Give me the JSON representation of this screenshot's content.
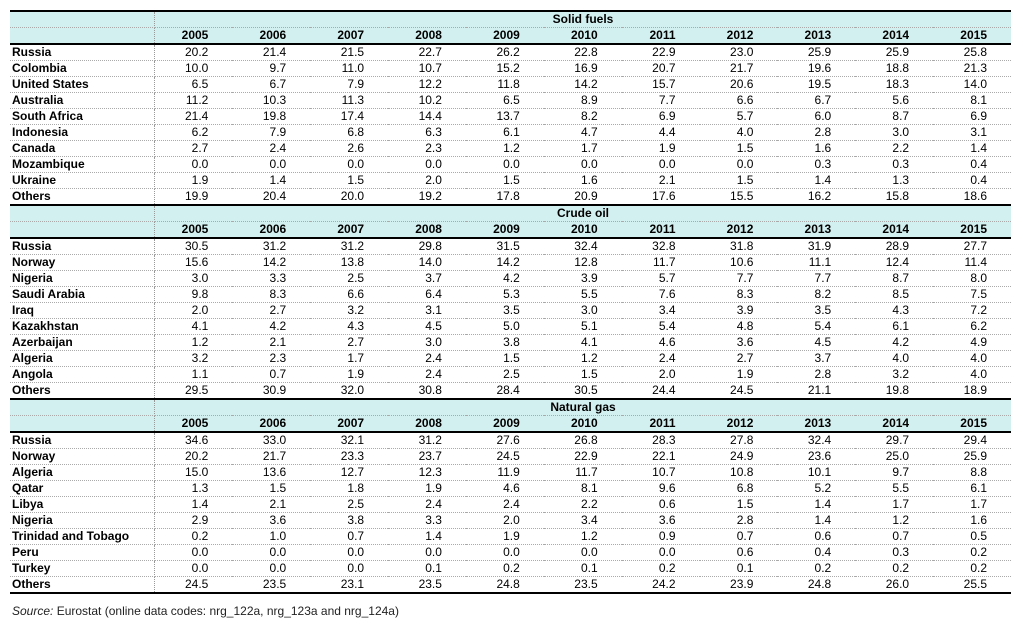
{
  "years": [
    "2005",
    "2006",
    "2007",
    "2008",
    "2009",
    "2010",
    "2011",
    "2012",
    "2013",
    "2014",
    "2015"
  ],
  "sections": [
    {
      "title": "Solid fuels",
      "rows": [
        {
          "label": "Russia",
          "values": [
            "20.2",
            "21.4",
            "21.5",
            "22.7",
            "26.2",
            "22.8",
            "22.9",
            "23.0",
            "25.9",
            "25.9",
            "25.8"
          ]
        },
        {
          "label": "Colombia",
          "values": [
            "10.0",
            "9.7",
            "11.0",
            "10.7",
            "15.2",
            "16.9",
            "20.7",
            "21.7",
            "19.6",
            "18.8",
            "21.3"
          ]
        },
        {
          "label": "United States",
          "values": [
            "6.5",
            "6.7",
            "7.9",
            "12.2",
            "11.8",
            "14.2",
            "15.7",
            "20.6",
            "19.5",
            "18.3",
            "14.0"
          ]
        },
        {
          "label": "Australia",
          "values": [
            "11.2",
            "10.3",
            "11.3",
            "10.2",
            "6.5",
            "8.9",
            "7.7",
            "6.6",
            "6.7",
            "5.6",
            "8.1"
          ]
        },
        {
          "label": "South Africa",
          "values": [
            "21.4",
            "19.8",
            "17.4",
            "14.4",
            "13.7",
            "8.2",
            "6.9",
            "5.7",
            "6.0",
            "8.7",
            "6.9"
          ]
        },
        {
          "label": "Indonesia",
          "values": [
            "6.2",
            "7.9",
            "6.8",
            "6.3",
            "6.1",
            "4.7",
            "4.4",
            "4.0",
            "2.8",
            "3.0",
            "3.1"
          ]
        },
        {
          "label": "Canada",
          "values": [
            "2.7",
            "2.4",
            "2.6",
            "2.3",
            "1.2",
            "1.7",
            "1.9",
            "1.5",
            "1.6",
            "2.2",
            "1.4"
          ]
        },
        {
          "label": "Mozambique",
          "values": [
            "0.0",
            "0.0",
            "0.0",
            "0.0",
            "0.0",
            "0.0",
            "0.0",
            "0.0",
            "0.3",
            "0.3",
            "0.4"
          ]
        },
        {
          "label": "Ukraine",
          "values": [
            "1.9",
            "1.4",
            "1.5",
            "2.0",
            "1.5",
            "1.6",
            "2.1",
            "1.5",
            "1.4",
            "1.3",
            "0.4"
          ]
        },
        {
          "label": "Others",
          "values": [
            "19.9",
            "20.4",
            "20.0",
            "19.2",
            "17.8",
            "20.9",
            "17.6",
            "15.5",
            "16.2",
            "15.8",
            "18.6"
          ]
        }
      ]
    },
    {
      "title": "Crude oil",
      "rows": [
        {
          "label": "Russia",
          "values": [
            "30.5",
            "31.2",
            "31.2",
            "29.8",
            "31.5",
            "32.4",
            "32.8",
            "31.8",
            "31.9",
            "28.9",
            "27.7"
          ]
        },
        {
          "label": "Norway",
          "values": [
            "15.6",
            "14.2",
            "13.8",
            "14.0",
            "14.2",
            "12.8",
            "11.7",
            "10.6",
            "11.1",
            "12.4",
            "11.4"
          ]
        },
        {
          "label": "Nigeria",
          "values": [
            "3.0",
            "3.3",
            "2.5",
            "3.7",
            "4.2",
            "3.9",
            "5.7",
            "7.7",
            "7.7",
            "8.7",
            "8.0"
          ]
        },
        {
          "label": "Saudi Arabia",
          "values": [
            "9.8",
            "8.3",
            "6.6",
            "6.4",
            "5.3",
            "5.5",
            "7.6",
            "8.3",
            "8.2",
            "8.5",
            "7.5"
          ]
        },
        {
          "label": "Iraq",
          "values": [
            "2.0",
            "2.7",
            "3.2",
            "3.1",
            "3.5",
            "3.0",
            "3.4",
            "3.9",
            "3.5",
            "4.3",
            "7.2"
          ]
        },
        {
          "label": "Kazakhstan",
          "values": [
            "4.1",
            "4.2",
            "4.3",
            "4.5",
            "5.0",
            "5.1",
            "5.4",
            "4.8",
            "5.4",
            "6.1",
            "6.2"
          ]
        },
        {
          "label": "Azerbaijan",
          "values": [
            "1.2",
            "2.1",
            "2.7",
            "3.0",
            "3.8",
            "4.1",
            "4.6",
            "3.6",
            "4.5",
            "4.2",
            "4.9"
          ]
        },
        {
          "label": "Algeria",
          "values": [
            "3.2",
            "2.3",
            "1.7",
            "2.4",
            "1.5",
            "1.2",
            "2.4",
            "2.7",
            "3.7",
            "4.0",
            "4.0"
          ]
        },
        {
          "label": "Angola",
          "values": [
            "1.1",
            "0.7",
            "1.9",
            "2.4",
            "2.5",
            "1.5",
            "2.0",
            "1.9",
            "2.8",
            "3.2",
            "4.0"
          ]
        },
        {
          "label": "Others",
          "values": [
            "29.5",
            "30.9",
            "32.0",
            "30.8",
            "28.4",
            "30.5",
            "24.4",
            "24.5",
            "21.1",
            "19.8",
            "18.9"
          ]
        }
      ]
    },
    {
      "title": "Natural gas",
      "rows": [
        {
          "label": "Russia",
          "values": [
            "34.6",
            "33.0",
            "32.1",
            "31.2",
            "27.6",
            "26.8",
            "28.3",
            "27.8",
            "32.4",
            "29.7",
            "29.4"
          ]
        },
        {
          "label": "Norway",
          "values": [
            "20.2",
            "21.7",
            "23.3",
            "23.7",
            "24.5",
            "22.9",
            "22.1",
            "24.9",
            "23.6",
            "25.0",
            "25.9"
          ]
        },
        {
          "label": "Algeria",
          "values": [
            "15.0",
            "13.6",
            "12.7",
            "12.3",
            "11.9",
            "11.7",
            "10.7",
            "10.8",
            "10.1",
            "9.7",
            "8.8"
          ]
        },
        {
          "label": "Qatar",
          "values": [
            "1.3",
            "1.5",
            "1.8",
            "1.9",
            "4.6",
            "8.1",
            "9.6",
            "6.8",
            "5.2",
            "5.5",
            "6.1"
          ]
        },
        {
          "label": "Libya",
          "values": [
            "1.4",
            "2.1",
            "2.5",
            "2.4",
            "2.4",
            "2.2",
            "0.6",
            "1.5",
            "1.4",
            "1.7",
            "1.7"
          ]
        },
        {
          "label": "Nigeria",
          "values": [
            "2.9",
            "3.6",
            "3.8",
            "3.3",
            "2.0",
            "3.4",
            "3.6",
            "2.8",
            "1.4",
            "1.2",
            "1.6"
          ]
        },
        {
          "label": "Trinidad and Tobago",
          "values": [
            "0.2",
            "1.0",
            "0.7",
            "1.4",
            "1.9",
            "1.2",
            "0.9",
            "0.7",
            "0.6",
            "0.7",
            "0.5"
          ]
        },
        {
          "label": "Peru",
          "values": [
            "0.0",
            "0.0",
            "0.0",
            "0.0",
            "0.0",
            "0.0",
            "0.0",
            "0.6",
            "0.4",
            "0.3",
            "0.2"
          ]
        },
        {
          "label": "Turkey",
          "values": [
            "0.0",
            "0.0",
            "0.0",
            "0.1",
            "0.2",
            "0.1",
            "0.2",
            "0.1",
            "0.2",
            "0.2",
            "0.2"
          ]
        },
        {
          "label": "Others",
          "values": [
            "24.5",
            "23.5",
            "23.1",
            "23.5",
            "24.8",
            "23.5",
            "24.2",
            "23.9",
            "24.8",
            "26.0",
            "25.5"
          ]
        }
      ]
    }
  ],
  "source": {
    "label": "Source:",
    "text": "Eurostat (online data codes: nrg_122a, nrg_123a and nrg_124a)"
  }
}
